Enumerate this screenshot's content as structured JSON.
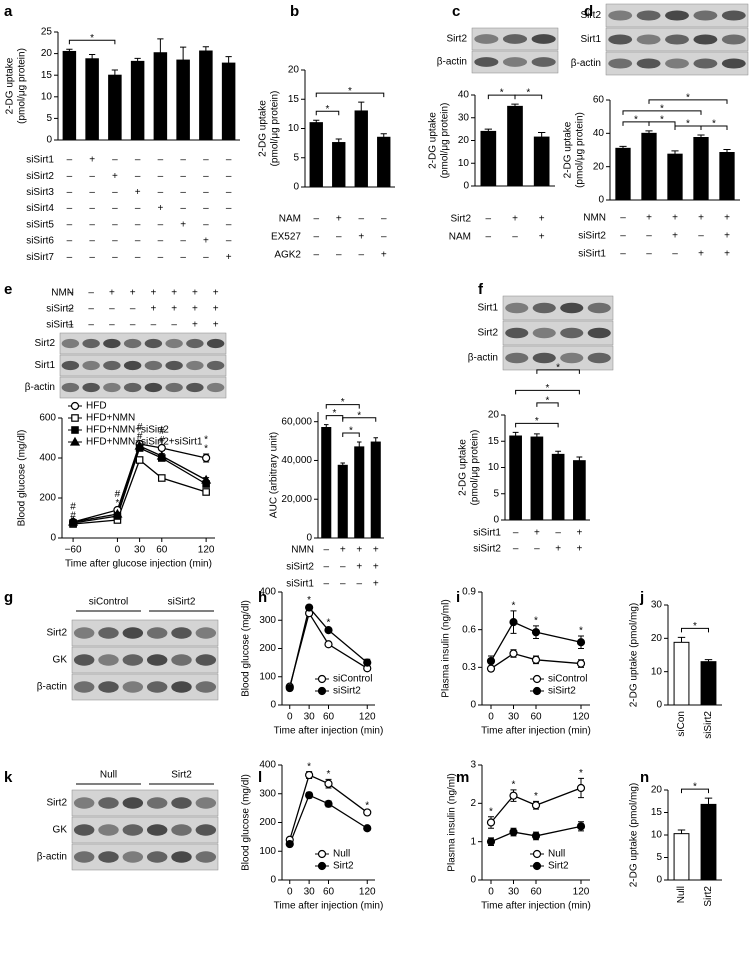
{
  "blots": [
    {
      "panel": "c",
      "rows": [
        "Sirt2",
        "β-actin"
      ]
    },
    {
      "panel": "d",
      "rows": [
        "Sirt2",
        "Sirt1",
        "β-actin"
      ]
    },
    {
      "panel": "e",
      "conditions": [
        {
          "name": "NMN",
          "signs": [
            "–",
            "–",
            "+",
            "+",
            "+",
            "+",
            "+",
            "+"
          ]
        },
        {
          "name": "siSirt2",
          "signs": [
            "–",
            "–",
            "–",
            "–",
            "+",
            "+",
            "+",
            "+"
          ]
        },
        {
          "name": "siSirt1",
          "signs": [
            "–",
            "–",
            "–",
            "–",
            "–",
            "–",
            "+",
            "+"
          ]
        }
      ],
      "rows": [
        "Sirt2",
        "Sirt1",
        "β-actin"
      ]
    },
    {
      "panel": "f",
      "rows": [
        "Sirt1",
        "Sirt2",
        "β-actin"
      ]
    },
    {
      "panel": "g",
      "groups": [
        "siControl",
        "siSirt2"
      ],
      "rows": [
        "Sirt2",
        "GK",
        "β-actin"
      ]
    },
    {
      "panel": "k",
      "groups": [
        "Null",
        "Sirt2"
      ],
      "rows": [
        "Sirt2",
        "GK",
        "β-actin"
      ]
    }
  ],
  "chart_data": [
    {
      "type": "bar",
      "panel": "a",
      "ylabel": [
        "2-DG uptake",
        "(pmol/μg protein)"
      ],
      "values": [
        20.5,
        18.8,
        15,
        18.2,
        20.2,
        18.5,
        20.6,
        17.8
      ],
      "errors": [
        0.5,
        1,
        1.2,
        0.7,
        3.2,
        3,
        1,
        1.5
      ],
      "color": "#000000",
      "ylim": [
        0,
        25
      ],
      "yticks": [
        0,
        5,
        10,
        15,
        20,
        25
      ],
      "conditions": [
        {
          "name": "siSirt1",
          "signs": [
            "–",
            "+",
            "–",
            "–",
            "–",
            "–",
            "–",
            "–"
          ]
        },
        {
          "name": "siSirt2",
          "signs": [
            "–",
            "–",
            "+",
            "–",
            "–",
            "–",
            "–",
            "–"
          ]
        },
        {
          "name": "siSirt3",
          "signs": [
            "–",
            "–",
            "–",
            "+",
            "–",
            "–",
            "–",
            "–"
          ]
        },
        {
          "name": "siSirt4",
          "signs": [
            "–",
            "–",
            "–",
            "–",
            "+",
            "–",
            "–",
            "–"
          ]
        },
        {
          "name": "siSirt5",
          "signs": [
            "–",
            "–",
            "–",
            "–",
            "–",
            "+",
            "–",
            "–"
          ]
        },
        {
          "name": "siSirt6",
          "signs": [
            "–",
            "–",
            "–",
            "–",
            "–",
            "–",
            "+",
            "–"
          ]
        },
        {
          "name": "siSirt7",
          "signs": [
            "–",
            "–",
            "–",
            "–",
            "–",
            "–",
            "–",
            "+"
          ]
        }
      ],
      "brackets": [
        {
          "from": 0,
          "to": 2,
          "text": "*"
        }
      ]
    },
    {
      "type": "bar",
      "panel": "b",
      "ylabel": [
        "2-DG uptake",
        "(pmol/μg protein)"
      ],
      "values": [
        11,
        7.6,
        13,
        8.5
      ],
      "errors": [
        0.4,
        0.6,
        1.5,
        0.6
      ],
      "color": "#000000",
      "ylim": [
        0,
        20
      ],
      "yticks": [
        0,
        5,
        10,
        15,
        20
      ],
      "conditions": [
        {
          "name": "NAM",
          "signs": [
            "–",
            "+",
            "–",
            "–"
          ]
        },
        {
          "name": "EX527",
          "signs": [
            "–",
            "–",
            "+",
            "–"
          ]
        },
        {
          "name": "AGK2",
          "signs": [
            "–",
            "–",
            "–",
            "+"
          ]
        }
      ],
      "brackets": [
        {
          "from": 0,
          "to": 1,
          "text": "*"
        },
        {
          "from": 0,
          "to": 3,
          "text": "*"
        }
      ]
    },
    {
      "type": "bar",
      "ylabel": [
        "2-DG uptake",
        "(pmol/μg protein)"
      ],
      "values": [
        24,
        35,
        21.5
      ],
      "errors": [
        1,
        1,
        2
      ],
      "color": "#000000",
      "ylim": [
        0,
        40
      ],
      "yticks": [
        0,
        10,
        20,
        30,
        40
      ],
      "conditions": [
        {
          "name": "Sirt2",
          "signs": [
            "–",
            "+",
            "+"
          ]
        },
        {
          "name": "NAM",
          "signs": [
            "–",
            "–",
            "+"
          ]
        }
      ],
      "brackets": [
        {
          "from": 0,
          "to": 1,
          "text": "*"
        },
        {
          "from": 1,
          "to": 2,
          "text": "*"
        }
      ]
    },
    {
      "type": "bar",
      "ylabel": [
        "2-DG uptake",
        "(pmol/μg protein)"
      ],
      "values": [
        31,
        40,
        27.5,
        37.5,
        28.5
      ],
      "errors": [
        1.2,
        1.5,
        2,
        1.5,
        1.8
      ],
      "color": "#000000",
      "ylim": [
        0,
        60
      ],
      "yticks": [
        0,
        20,
        40,
        60
      ],
      "conditions": [
        {
          "name": "NMN",
          "signs": [
            "–",
            "+",
            "+",
            "+",
            "+"
          ]
        },
        {
          "name": "siSirt2",
          "signs": [
            "–",
            "–",
            "+",
            "–",
            "+"
          ]
        },
        {
          "name": "siSirt1",
          "signs": [
            "–",
            "–",
            "–",
            "+",
            "+"
          ]
        }
      ],
      "brackets": [
        {
          "from": 0,
          "to": 1,
          "text": "*"
        },
        {
          "from": 1,
          "to": 2,
          "text": "*"
        },
        {
          "from": 2,
          "to": 3,
          "text": "*"
        },
        {
          "from": 3,
          "to": 4,
          "text": "*"
        },
        {
          "from": 0,
          "to": 3,
          "text": "*"
        },
        {
          "from": 1,
          "to": 4,
          "text": "*"
        }
      ]
    },
    {
      "type": "line",
      "ylabel": [
        "Blood glucose (mg/dl)"
      ],
      "xlabel": "Time after glucose injection (min)",
      "x": [
        -60,
        0,
        30,
        60,
        120
      ],
      "xlim": [
        -75,
        132
      ],
      "xticks": [
        {
          "value": -60,
          "label": "−60"
        },
        0,
        30,
        60,
        120
      ],
      "ylim": [
        0,
        600
      ],
      "yticks": [
        0,
        200,
        400,
        600
      ],
      "legend": "upper-left",
      "series": [
        {
          "name": "HFD",
          "color": "#000000",
          "marker": "circle",
          "filled": false,
          "values": [
            80,
            140,
            470,
            450,
            400
          ],
          "errors": [
            5,
            8,
            12,
            12,
            20
          ]
        },
        {
          "name": "HFD+NMN",
          "color": "#000000",
          "marker": "square",
          "filled": false,
          "values": [
            70,
            90,
            390,
            300,
            230
          ],
          "errors": [
            5,
            6,
            12,
            12,
            10
          ]
        },
        {
          "name": "HFD+NMN+siSirt2",
          "color": "#000000",
          "marker": "square",
          "filled": true,
          "values": [
            75,
            110,
            450,
            400,
            270
          ],
          "errors": [
            5,
            6,
            12,
            12,
            12
          ]
        },
        {
          "name": "HFD+NMN+siSirt2+siSirt1",
          "color": "#000000",
          "marker": "triangle",
          "filled": true,
          "values": [
            80,
            120,
            460,
            410,
            290
          ],
          "errors": [
            5,
            6,
            12,
            12,
            12
          ]
        }
      ],
      "annotations": [
        {
          "at": 0,
          "text": "#"
        },
        {
          "at": 0,
          "text": "#"
        },
        {
          "at": 1,
          "text": "*"
        },
        {
          "at": 1,
          "text": "#"
        },
        {
          "at": 2,
          "text": "#"
        },
        {
          "at": 2,
          "text": "#"
        },
        {
          "at": 3,
          "text": "#"
        },
        {
          "at": 3,
          "text": "#"
        },
        {
          "at": 4,
          "text": "*"
        },
        {
          "at": 4,
          "text": "*"
        }
      ]
    },
    {
      "type": "bar",
      "ylabel": [
        "AUC (arbitrary unit)"
      ],
      "values": [
        57000,
        37500,
        47000,
        49500
      ],
      "errors": [
        1500,
        1200,
        2500,
        2200
      ],
      "color": "#000000",
      "ylim": [
        0,
        65000
      ],
      "yticks": [
        0,
        {
          "value": 20000,
          "label": "20,000"
        },
        {
          "value": 40000,
          "label": "40,000"
        },
        {
          "value": 60000,
          "label": "60,000"
        }
      ],
      "conditions": [
        {
          "name": "NMN",
          "signs": [
            "–",
            "+",
            "+",
            "+"
          ]
        },
        {
          "name": "siSirt2",
          "signs": [
            "–",
            "–",
            "+",
            "+"
          ]
        },
        {
          "name": "siSirt1",
          "signs": [
            "–",
            "–",
            "–",
            "+"
          ]
        }
      ],
      "brackets": [
        {
          "from": 0,
          "to": 1,
          "text": "*"
        },
        {
          "from": 1,
          "to": 2,
          "text": "*"
        },
        {
          "from": 0,
          "to": 2,
          "text": "*"
        },
        {
          "from": 1,
          "to": 3,
          "text": "*"
        }
      ]
    },
    {
      "type": "bar",
      "ylabel": [
        "2-DG uptake",
        "(pmol/μg protein)"
      ],
      "values": [
        16,
        15.8,
        12.5,
        11.3
      ],
      "errors": [
        0.7,
        0.6,
        0.6,
        0.7
      ],
      "color": "#000000",
      "ylim": [
        0,
        20
      ],
      "yticks": [
        0,
        5,
        10,
        15,
        20
      ],
      "conditions": [
        {
          "name": "siSirt1",
          "signs": [
            "–",
            "+",
            "–",
            "+"
          ]
        },
        {
          "name": "siSirt2",
          "signs": [
            "–",
            "–",
            "+",
            "+"
          ]
        }
      ],
      "brackets": [
        {
          "from": 0,
          "to": 2,
          "text": "*"
        },
        {
          "from": 1,
          "to": 2,
          "text": "*"
        },
        {
          "from": 0,
          "to": 3,
          "text": "*"
        },
        {
          "from": 1,
          "to": 3,
          "text": "*"
        }
      ]
    },
    {
      "type": "line",
      "panel": "h",
      "ylabel": [
        "Blood glucose (mg/dl)"
      ],
      "xlabel": "Time after injection (min)",
      "x": [
        0,
        30,
        60,
        120
      ],
      "xlim": [
        -12,
        132
      ],
      "xticks": [
        0,
        30,
        60,
        120
      ],
      "ylim": [
        0,
        400
      ],
      "yticks": [
        0,
        100,
        200,
        300,
        400
      ],
      "legend": "lower-right",
      "series": [
        {
          "name": "siControl",
          "color": "#000000",
          "marker": "circle",
          "filled": false,
          "values": [
            65,
            325,
            215,
            130
          ],
          "errors": [
            5,
            8,
            6,
            6
          ]
        },
        {
          "name": "siSirt2",
          "color": "#000000",
          "marker": "circle",
          "filled": true,
          "values": [
            60,
            345,
            265,
            150
          ],
          "errors": [
            5,
            8,
            8,
            12
          ]
        }
      ],
      "annotations": [
        {
          "at": 1,
          "text": "*"
        },
        {
          "at": 2,
          "text": "*"
        }
      ]
    },
    {
      "type": "line",
      "panel": "i",
      "ylabel": [
        "Plasma insulin (ng/ml)"
      ],
      "xlabel": "Time after injection (min)",
      "x": [
        0,
        30,
        60,
        120
      ],
      "xlim": [
        -12,
        132
      ],
      "xticks": [
        0,
        30,
        60,
        120
      ],
      "ylim": [
        0,
        0.9
      ],
      "yticks": [
        0,
        0.3,
        0.6,
        0.9
      ],
      "legend": "lower-right",
      "series": [
        {
          "name": "siControl",
          "color": "#000000",
          "marker": "circle",
          "filled": false,
          "values": [
            0.29,
            0.41,
            0.36,
            0.33
          ],
          "errors": [
            0.02,
            0.03,
            0.03,
            0.03
          ]
        },
        {
          "name": "siSirt2",
          "color": "#000000",
          "marker": "circle",
          "filled": true,
          "values": [
            0.35,
            0.66,
            0.58,
            0.5
          ],
          "errors": [
            0.04,
            0.09,
            0.05,
            0.05
          ]
        }
      ],
      "annotations": [
        {
          "at": 1,
          "text": "*"
        },
        {
          "at": 2,
          "text": "*"
        },
        {
          "at": 3,
          "text": "*"
        }
      ]
    },
    {
      "type": "bar",
      "panel": "j",
      "ylabel": [
        "2-DG uptake (pmol/mg)"
      ],
      "categories": [
        "siCon",
        "siSirt2"
      ],
      "values": [
        18.8,
        13
      ],
      "errors": [
        1.5,
        0.6
      ],
      "colors": [
        "#ffffff",
        "#000000"
      ],
      "ylim": [
        0,
        30
      ],
      "yticks": [
        0,
        10,
        20,
        30
      ],
      "brackets": [
        {
          "from": 0,
          "to": 1,
          "text": "*"
        }
      ]
    },
    {
      "type": "line",
      "panel": "l",
      "ylabel": [
        "Blood glucose (mg/dl)"
      ],
      "xlabel": "Time after injection (min)",
      "x": [
        0,
        30,
        60,
        120
      ],
      "xlim": [
        -12,
        132
      ],
      "xticks": [
        0,
        30,
        60,
        120
      ],
      "ylim": [
        0,
        400
      ],
      "yticks": [
        0,
        100,
        200,
        300,
        400
      ],
      "legend": "lower-right",
      "series": [
        {
          "name": "Null",
          "color": "#000000",
          "marker": "circle",
          "filled": false,
          "values": [
            140,
            365,
            335,
            235
          ],
          "errors": [
            8,
            12,
            15,
            6
          ]
        },
        {
          "name": "Sirt2",
          "color": "#000000",
          "marker": "circle",
          "filled": true,
          "values": [
            125,
            295,
            265,
            180
          ],
          "errors": [
            5,
            10,
            10,
            5
          ]
        }
      ],
      "annotations": [
        {
          "at": 1,
          "text": "*"
        },
        {
          "at": 2,
          "text": "*"
        },
        {
          "at": 3,
          "text": "*"
        }
      ]
    },
    {
      "type": "line",
      "panel": "m",
      "ylabel": [
        "Plasma insulin (ng/ml)"
      ],
      "xlabel": "Time after injection (min)",
      "x": [
        0,
        30,
        60,
        120
      ],
      "xlim": [
        -12,
        132
      ],
      "xticks": [
        0,
        30,
        60,
        120
      ],
      "ylim": [
        0,
        3
      ],
      "yticks": [
        0,
        1,
        2,
        3
      ],
      "legend": "lower-right",
      "series": [
        {
          "name": "Null",
          "color": "#000000",
          "marker": "circle",
          "filled": false,
          "values": [
            1.5,
            2.2,
            1.95,
            2.4
          ],
          "errors": [
            0.15,
            0.15,
            0.1,
            0.25
          ]
        },
        {
          "name": "Sirt2",
          "color": "#000000",
          "marker": "circle",
          "filled": true,
          "values": [
            1.0,
            1.25,
            1.15,
            1.4
          ],
          "errors": [
            0.1,
            0.1,
            0.1,
            0.12
          ]
        }
      ],
      "annotations": [
        {
          "at": 0,
          "text": "*"
        },
        {
          "at": 1,
          "text": "*"
        },
        {
          "at": 2,
          "text": "*"
        },
        {
          "at": 3,
          "text": "*"
        }
      ]
    },
    {
      "type": "bar",
      "panel": "n",
      "ylabel": [
        "2-DG uptake (pmol/mg)"
      ],
      "categories": [
        "Null",
        "Sirt2"
      ],
      "values": [
        10.3,
        16.8
      ],
      "errors": [
        0.8,
        1.4
      ],
      "colors": [
        "#ffffff",
        "#000000"
      ],
      "ylim": [
        0,
        20
      ],
      "yticks": [
        0,
        5,
        10,
        15,
        20
      ],
      "brackets": [
        {
          "from": 0,
          "to": 1,
          "text": "*"
        }
      ]
    }
  ]
}
